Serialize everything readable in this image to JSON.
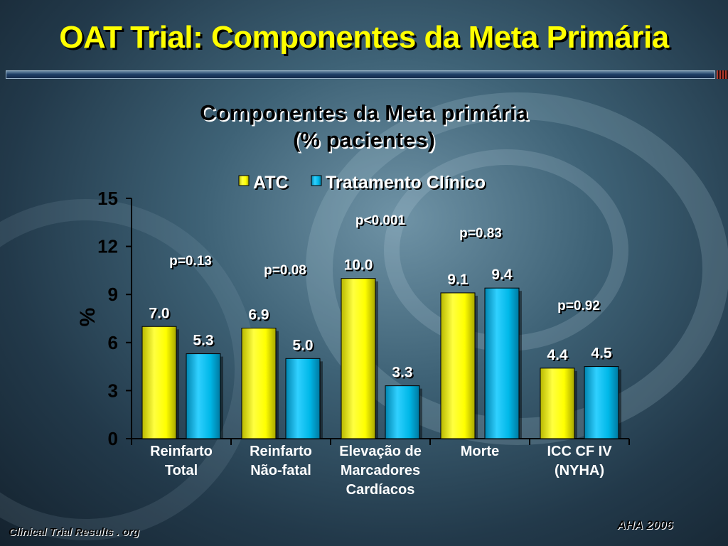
{
  "slide": {
    "title": "OAT Trial: Componentes da Meta Primária",
    "footer_left": "Clinical Trial Results . org",
    "footer_right": "AHA 2006"
  },
  "colors": {
    "title": "#ffff00",
    "atc": "#ffff00",
    "tratamento": "#00b8e8",
    "text": "#000000"
  },
  "chart_data": {
    "type": "bar",
    "title": [
      "Componentes da Meta primária",
      "(% pacientes)"
    ],
    "ylabel": "%",
    "xlabel": "",
    "ylim": [
      0,
      15
    ],
    "yticks": [
      "0",
      "3",
      "6",
      "9",
      "12",
      "15"
    ],
    "ytick_values": [
      0,
      3,
      6,
      9,
      12,
      15
    ],
    "legend_position": "top",
    "categories": [
      [
        "Reinfarto",
        "Total"
      ],
      [
        "Reinfarto",
        "Não-fatal"
      ],
      [
        "Elevação de",
        "Marcadores",
        "Cardíacos"
      ],
      [
        "Morte"
      ],
      [
        "ICC CF IV",
        "(NYHA)"
      ]
    ],
    "series": [
      {
        "name": "ATC",
        "color": "#ffff00",
        "values": [
          7.0,
          6.9,
          10.0,
          9.1,
          4.4
        ],
        "labels": [
          "7.0",
          "6.9",
          "10.0",
          "9.1",
          "4.4"
        ]
      },
      {
        "name": "Tratamento Clínico",
        "color": "#00b8e8",
        "values": [
          5.3,
          5.0,
          3.3,
          9.4,
          4.5
        ],
        "labels": [
          "5.3",
          "5.0",
          "3.3",
          "9.4",
          "4.5"
        ]
      }
    ],
    "annotations": [
      "p=0.13",
      "p=0.08",
      "p<0.001",
      "p=0.83",
      "p=0.92"
    ],
    "grid": false
  }
}
